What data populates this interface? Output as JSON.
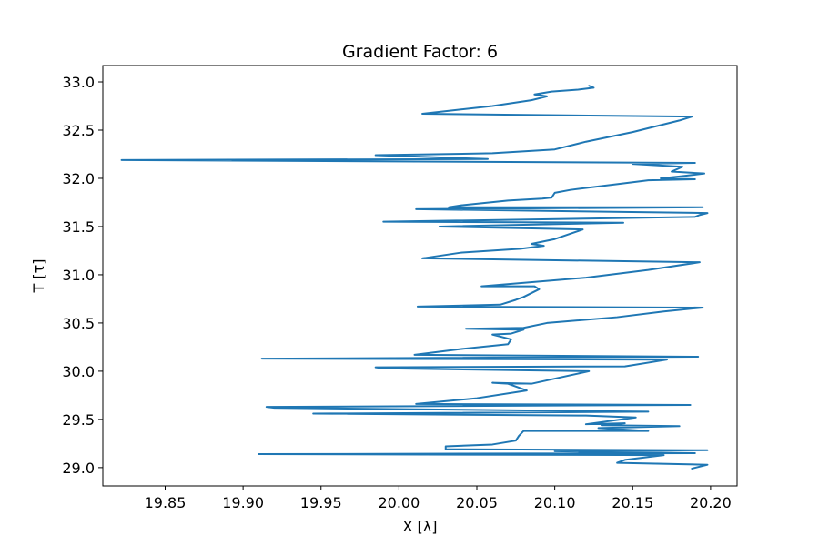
{
  "chart_data": {
    "type": "line",
    "title": "Gradient Factor: 6",
    "xlabel": "X [λ]",
    "ylabel": "T [τ]",
    "xlim": [
      19.81,
      20.217
    ],
    "ylim": [
      28.81,
      33.17
    ],
    "xticks": [
      19.85,
      19.9,
      19.95,
      20.0,
      20.05,
      20.1,
      20.15,
      20.2
    ],
    "xtick_labels": [
      "19.85",
      "19.90",
      "19.95",
      "20.00",
      "20.05",
      "20.10",
      "20.15",
      "20.20"
    ],
    "yticks": [
      29.0,
      29.5,
      30.0,
      30.5,
      31.0,
      31.5,
      32.0,
      32.5,
      33.0
    ],
    "ytick_labels": [
      "29.0",
      "29.5",
      "30.0",
      "30.5",
      "31.0",
      "31.5",
      "32.0",
      "32.5",
      "33.0"
    ],
    "grid": false,
    "series": [
      {
        "color": "#1f77b4",
        "points": [
          [
            20.188,
            28.99
          ],
          [
            20.198,
            29.03
          ],
          [
            20.14,
            29.05
          ],
          [
            20.145,
            29.08
          ],
          [
            20.17,
            29.13
          ],
          [
            19.91,
            29.14
          ],
          [
            20.19,
            29.15
          ],
          [
            20.1,
            29.17
          ],
          [
            20.198,
            29.18
          ],
          [
            20.03,
            29.19
          ],
          [
            20.03,
            29.22
          ],
          [
            20.06,
            29.24
          ],
          [
            20.075,
            29.28
          ],
          [
            20.077,
            29.33
          ],
          [
            20.08,
            29.38
          ],
          [
            20.16,
            29.38
          ],
          [
            20.128,
            29.41
          ],
          [
            20.18,
            29.43
          ],
          [
            20.13,
            29.44
          ],
          [
            20.145,
            29.46
          ],
          [
            20.12,
            29.45
          ],
          [
            20.152,
            29.52
          ],
          [
            20.12,
            29.54
          ],
          [
            19.945,
            29.56
          ],
          [
            20.16,
            29.58
          ],
          [
            19.92,
            29.62
          ],
          [
            19.915,
            29.63
          ],
          [
            20.187,
            29.65
          ],
          [
            20.011,
            29.66
          ],
          [
            20.05,
            29.72
          ],
          [
            20.082,
            29.8
          ],
          [
            20.07,
            29.87
          ],
          [
            20.06,
            29.88
          ],
          [
            20.085,
            29.87
          ],
          [
            20.122,
            30.0
          ],
          [
            19.99,
            30.03
          ],
          [
            19.985,
            30.04
          ],
          [
            20.145,
            30.05
          ],
          [
            20.172,
            30.12
          ],
          [
            19.912,
            30.13
          ],
          [
            20.192,
            30.15
          ],
          [
            20.01,
            30.17
          ],
          [
            20.04,
            30.23
          ],
          [
            20.07,
            30.28
          ],
          [
            20.072,
            30.33
          ],
          [
            20.06,
            30.38
          ],
          [
            20.072,
            30.39
          ],
          [
            20.08,
            30.43
          ],
          [
            20.043,
            30.44
          ],
          [
            20.08,
            30.45
          ],
          [
            20.095,
            30.5
          ],
          [
            20.14,
            30.56
          ],
          [
            20.17,
            30.62
          ],
          [
            20.195,
            30.66
          ],
          [
            20.012,
            30.67
          ],
          [
            20.065,
            30.69
          ],
          [
            20.075,
            30.74
          ],
          [
            20.08,
            30.77
          ],
          [
            20.09,
            30.85
          ],
          [
            20.087,
            30.88
          ],
          [
            20.053,
            30.88
          ],
          [
            20.12,
            30.97
          ],
          [
            20.16,
            31.05
          ],
          [
            20.193,
            31.13
          ],
          [
            20.015,
            31.17
          ],
          [
            20.04,
            31.23
          ],
          [
            20.078,
            31.27
          ],
          [
            20.093,
            31.3
          ],
          [
            20.085,
            31.32
          ],
          [
            20.1,
            31.37
          ],
          [
            20.118,
            31.47
          ],
          [
            20.026,
            31.5
          ],
          [
            20.144,
            31.54
          ],
          [
            19.99,
            31.55
          ],
          [
            20.19,
            31.6
          ],
          [
            20.193,
            31.62
          ],
          [
            20.198,
            31.64
          ],
          [
            20.011,
            31.68
          ],
          [
            20.195,
            31.7
          ],
          [
            20.032,
            31.7
          ],
          [
            20.04,
            31.72
          ],
          [
            20.07,
            31.77
          ],
          [
            20.092,
            31.79
          ],
          [
            20.098,
            31.8
          ],
          [
            20.1,
            31.85
          ],
          [
            20.11,
            31.88
          ],
          [
            20.14,
            31.94
          ],
          [
            20.16,
            31.98
          ],
          [
            20.19,
            31.99
          ],
          [
            20.168,
            32.0
          ],
          [
            20.18,
            32.02
          ],
          [
            20.196,
            32.05
          ],
          [
            20.175,
            32.07
          ],
          [
            20.182,
            32.12
          ],
          [
            20.15,
            32.15
          ],
          [
            20.19,
            32.16
          ],
          [
            19.822,
            32.19
          ],
          [
            20.057,
            32.2
          ],
          [
            19.985,
            32.24
          ],
          [
            20.06,
            32.26
          ],
          [
            20.1,
            32.3
          ],
          [
            20.12,
            32.38
          ],
          [
            20.15,
            32.48
          ],
          [
            20.18,
            32.6
          ],
          [
            20.188,
            32.64
          ],
          [
            20.015,
            32.67
          ],
          [
            20.06,
            32.75
          ],
          [
            20.085,
            32.81
          ],
          [
            20.095,
            32.85
          ],
          [
            20.087,
            32.87
          ],
          [
            20.098,
            32.9
          ],
          [
            20.115,
            32.92
          ],
          [
            20.125,
            32.94
          ],
          [
            20.122,
            32.96
          ]
        ]
      }
    ]
  }
}
